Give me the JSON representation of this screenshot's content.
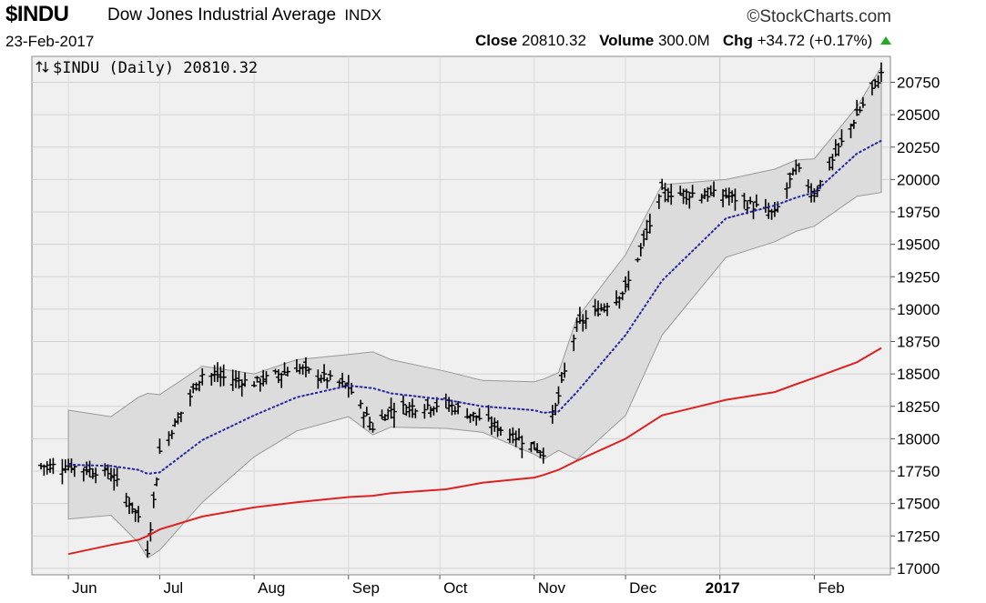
{
  "header": {
    "symbol": "$INDU",
    "name": "Dow Jones Industrial Average",
    "exchange": "INDX",
    "brand": "©StockCharts.com",
    "date": "23-Feb-2017",
    "close_label": "Close",
    "close_value": "20810.32",
    "volume_label": "Volume",
    "volume_value": "300.0M",
    "chg_label": "Chg",
    "chg_value": "+34.72 (+0.17%)"
  },
  "plot_title": "$INDU (Daily) 20810.32",
  "colors": {
    "background": "#ffffff",
    "plot_background": "#f0f0f0",
    "bollinger_band": "#e0e0e0",
    "sma50": "#2222aa",
    "sma200": "#dd2222",
    "price_bars": "#000000",
    "up_indicator": "#22aa22"
  },
  "icons": [
    "up-down-arrows-icon",
    "up-triangle-icon"
  ],
  "chart_data": {
    "type": "line",
    "ylim": [
      16950,
      20950
    ],
    "y_ticks": [
      17000,
      17250,
      17500,
      17750,
      18000,
      18250,
      18500,
      18750,
      19000,
      19250,
      19500,
      19750,
      20000,
      20250,
      20500,
      20750
    ],
    "x_labels": [
      "Jun",
      "Jul",
      "Aug",
      "Sep",
      "Oct",
      "Nov",
      "Dec",
      "2017",
      "Feb"
    ],
    "x_label_bold": [
      false,
      false,
      false,
      false,
      false,
      false,
      false,
      true,
      false
    ],
    "x": [
      "2016-06-01",
      "2016-06-15",
      "2016-06-24",
      "2016-06-27",
      "2016-07-01",
      "2016-07-15",
      "2016-08-01",
      "2016-08-15",
      "2016-09-01",
      "2016-09-09",
      "2016-09-15",
      "2016-10-03",
      "2016-10-15",
      "2016-11-01",
      "2016-11-04",
      "2016-11-09",
      "2016-11-15",
      "2016-12-01",
      "2016-12-13",
      "2017-01-03",
      "2017-01-19",
      "2017-01-26",
      "2017-02-01",
      "2017-02-15",
      "2017-02-23"
    ],
    "series": [
      {
        "name": "Close",
        "values": [
          17790,
          17730,
          17400,
          17140,
          17900,
          18500,
          18430,
          18550,
          18400,
          18090,
          18230,
          18270,
          18150,
          17940,
          17900,
          18330,
          18870,
          19150,
          19900,
          19880,
          19730,
          20090,
          19890,
          20500,
          20810
        ]
      },
      {
        "values": [
          17800,
          17790,
          17760,
          17730,
          17740,
          17990,
          18180,
          18320,
          18410,
          18390,
          18350,
          18300,
          18250,
          18220,
          18200,
          18210,
          18360,
          18800,
          19220,
          19700,
          19800,
          19860,
          19900,
          20200,
          20300
        ]
      },
      {
        "values": [
          17110,
          17180,
          17220,
          17250,
          17300,
          17400,
          17470,
          17510,
          17550,
          17560,
          17580,
          17610,
          17660,
          17700,
          17720,
          17760,
          17830,
          18000,
          18180,
          18300,
          18360,
          18420,
          18470,
          18590,
          18700
        ]
      }
    ]
  }
}
